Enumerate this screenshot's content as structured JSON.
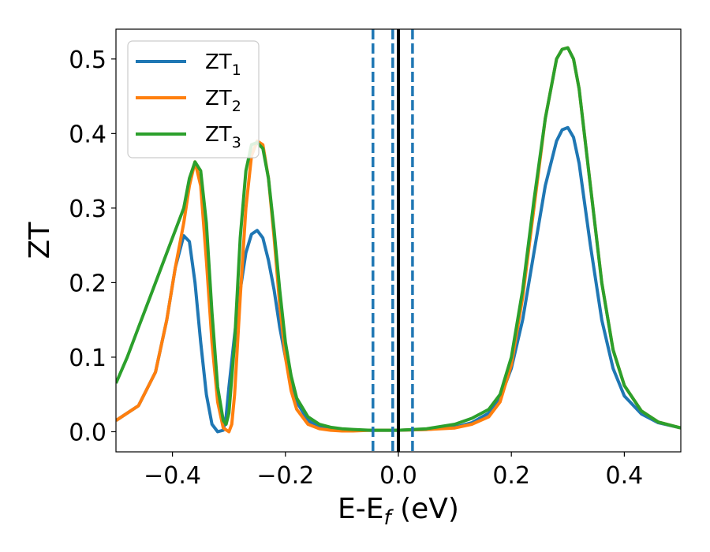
{
  "chart_data": {
    "type": "line",
    "xlabel": "E-E",
    "xlabel_sub": "f",
    "xlabel_unit": " (eV)",
    "ylabel": "ZT",
    "xlim": [
      -0.5,
      0.5
    ],
    "ylim": [
      -0.027,
      0.54
    ],
    "xticks": [
      -0.4,
      -0.2,
      0.0,
      0.2,
      0.4
    ],
    "xtick_labels": [
      "−0.4",
      "−0.2",
      "0.0",
      "0.2",
      "0.4"
    ],
    "yticks": [
      0.0,
      0.1,
      0.2,
      0.3,
      0.4,
      0.5
    ],
    "ytick_labels": [
      "0.0",
      "0.1",
      "0.2",
      "0.3",
      "0.4",
      "0.5"
    ],
    "grid": false,
    "legend_position": "upper-left",
    "series": [
      {
        "name": "ZT",
        "name_sub": "1",
        "color": "#1f77b4",
        "x": [
          -0.5,
          -0.46,
          -0.43,
          -0.41,
          -0.395,
          -0.38,
          -0.37,
          -0.36,
          -0.35,
          -0.34,
          -0.33,
          -0.32,
          -0.31,
          -0.305,
          -0.3,
          -0.29,
          -0.28,
          -0.27,
          -0.26,
          -0.25,
          -0.24,
          -0.23,
          -0.22,
          -0.21,
          -0.2,
          -0.19,
          -0.18,
          -0.16,
          -0.14,
          -0.12,
          -0.1,
          -0.08,
          -0.05,
          0.0,
          0.05,
          0.1,
          0.13,
          0.16,
          0.18,
          0.2,
          0.22,
          0.24,
          0.26,
          0.28,
          0.29,
          0.3,
          0.31,
          0.32,
          0.34,
          0.36,
          0.38,
          0.4,
          0.43,
          0.46,
          0.5
        ],
        "y": [
          0.015,
          0.035,
          0.08,
          0.15,
          0.22,
          0.263,
          0.255,
          0.2,
          0.12,
          0.05,
          0.01,
          0.0,
          0.002,
          0.02,
          0.06,
          0.13,
          0.19,
          0.24,
          0.265,
          0.27,
          0.26,
          0.23,
          0.19,
          0.14,
          0.1,
          0.065,
          0.04,
          0.015,
          0.006,
          0.003,
          0.002,
          0.002,
          0.002,
          0.002,
          0.003,
          0.006,
          0.012,
          0.025,
          0.045,
          0.085,
          0.15,
          0.24,
          0.33,
          0.39,
          0.405,
          0.408,
          0.395,
          0.36,
          0.25,
          0.15,
          0.085,
          0.048,
          0.024,
          0.012,
          0.005
        ]
      },
      {
        "name": "ZT",
        "name_sub": "2",
        "color": "#ff7f0e",
        "x": [
          -0.5,
          -0.46,
          -0.43,
          -0.41,
          -0.395,
          -0.38,
          -0.37,
          -0.36,
          -0.35,
          -0.34,
          -0.33,
          -0.32,
          -0.31,
          -0.3,
          -0.295,
          -0.29,
          -0.28,
          -0.27,
          -0.26,
          -0.25,
          -0.24,
          -0.23,
          -0.22,
          -0.21,
          -0.2,
          -0.19,
          -0.18,
          -0.16,
          -0.14,
          -0.12,
          -0.1,
          -0.08,
          -0.05,
          0.0,
          0.05,
          0.1,
          0.13,
          0.16,
          0.18,
          0.2,
          0.22,
          0.24,
          0.26,
          0.28,
          0.29,
          0.3,
          0.31,
          0.32,
          0.34,
          0.36,
          0.38,
          0.4,
          0.43,
          0.46,
          0.5
        ],
        "y": [
          0.015,
          0.035,
          0.08,
          0.15,
          0.22,
          0.28,
          0.33,
          0.362,
          0.33,
          0.23,
          0.12,
          0.04,
          0.005,
          0.0,
          0.01,
          0.05,
          0.18,
          0.3,
          0.37,
          0.39,
          0.385,
          0.34,
          0.26,
          0.17,
          0.1,
          0.055,
          0.03,
          0.01,
          0.004,
          0.002,
          0.001,
          0.001,
          0.002,
          0.002,
          0.003,
          0.005,
          0.01,
          0.02,
          0.04,
          0.09,
          0.18,
          0.3,
          0.42,
          0.5,
          0.513,
          0.515,
          0.5,
          0.46,
          0.33,
          0.2,
          0.11,
          0.062,
          0.028,
          0.013,
          0.005
        ]
      },
      {
        "name": "ZT",
        "name_sub": "3",
        "color": "#2ca02c",
        "x": [
          -0.5,
          -0.48,
          -0.46,
          -0.44,
          -0.42,
          -0.4,
          -0.38,
          -0.37,
          -0.36,
          -0.35,
          -0.34,
          -0.33,
          -0.32,
          -0.31,
          -0.305,
          -0.3,
          -0.29,
          -0.28,
          -0.27,
          -0.26,
          -0.25,
          -0.24,
          -0.23,
          -0.22,
          -0.21,
          -0.2,
          -0.19,
          -0.18,
          -0.16,
          -0.14,
          -0.12,
          -0.1,
          -0.08,
          -0.05,
          0.0,
          0.05,
          0.1,
          0.13,
          0.16,
          0.18,
          0.2,
          0.22,
          0.24,
          0.26,
          0.28,
          0.29,
          0.3,
          0.31,
          0.32,
          0.34,
          0.36,
          0.38,
          0.4,
          0.43,
          0.46,
          0.5
        ],
        "y": [
          0.065,
          0.1,
          0.14,
          0.18,
          0.22,
          0.26,
          0.3,
          0.34,
          0.362,
          0.35,
          0.28,
          0.16,
          0.06,
          0.015,
          0.01,
          0.025,
          0.12,
          0.26,
          0.35,
          0.385,
          0.388,
          0.38,
          0.34,
          0.27,
          0.19,
          0.12,
          0.075,
          0.045,
          0.02,
          0.01,
          0.006,
          0.004,
          0.003,
          0.002,
          0.002,
          0.004,
          0.01,
          0.018,
          0.03,
          0.05,
          0.1,
          0.19,
          0.31,
          0.42,
          0.5,
          0.513,
          0.515,
          0.5,
          0.46,
          0.33,
          0.2,
          0.11,
          0.062,
          0.028,
          0.013,
          0.005
        ]
      }
    ],
    "vlines": [
      {
        "x": -0.045,
        "style": "dashed",
        "color": "#1f77b4"
      },
      {
        "x": -0.01,
        "style": "dashed",
        "color": "#1f77b4"
      },
      {
        "x": 0.025,
        "style": "dashed",
        "color": "#1f77b4"
      },
      {
        "x": 0.0,
        "style": "solid",
        "color": "#000000"
      }
    ]
  }
}
